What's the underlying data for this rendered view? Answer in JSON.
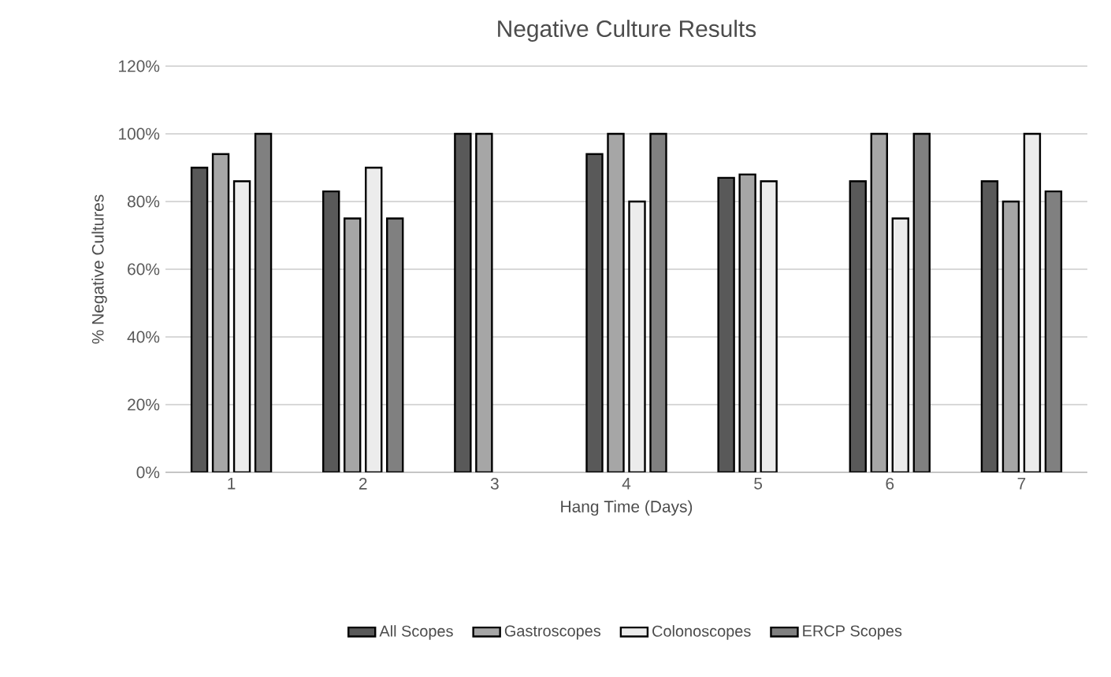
{
  "chart_data": {
    "type": "bar",
    "title": "Negative Culture Results",
    "xlabel": "Hang Time (Days)",
    "ylabel": "% Negative Cultures",
    "categories": [
      "1",
      "2",
      "3",
      "4",
      "5",
      "6",
      "7"
    ],
    "series": [
      {
        "name": "All Scopes",
        "color": "#595959",
        "values": [
          90,
          83,
          100,
          94,
          87,
          86,
          86
        ]
      },
      {
        "name": "Gastroscopes",
        "color": "#a6a6a6",
        "values": [
          94,
          75,
          100,
          100,
          88,
          100,
          80
        ]
      },
      {
        "name": "Colonoscopes",
        "color": "#ececec",
        "values": [
          86,
          90,
          null,
          80,
          86,
          75,
          100
        ]
      },
      {
        "name": "ERCP Scopes",
        "color": "#808080",
        "values": [
          100,
          75,
          null,
          100,
          null,
          100,
          83
        ]
      }
    ],
    "ylim": [
      0,
      120
    ],
    "yticks": [
      {
        "value": 0,
        "label": "0%"
      },
      {
        "value": 20,
        "label": "20%"
      },
      {
        "value": 40,
        "label": "40%"
      },
      {
        "value": 60,
        "label": "60%"
      },
      {
        "value": 80,
        "label": "80%"
      },
      {
        "value": 100,
        "label": "100%"
      },
      {
        "value": 120,
        "label": "120%"
      }
    ],
    "grid": "y",
    "legend": "bottom"
  }
}
